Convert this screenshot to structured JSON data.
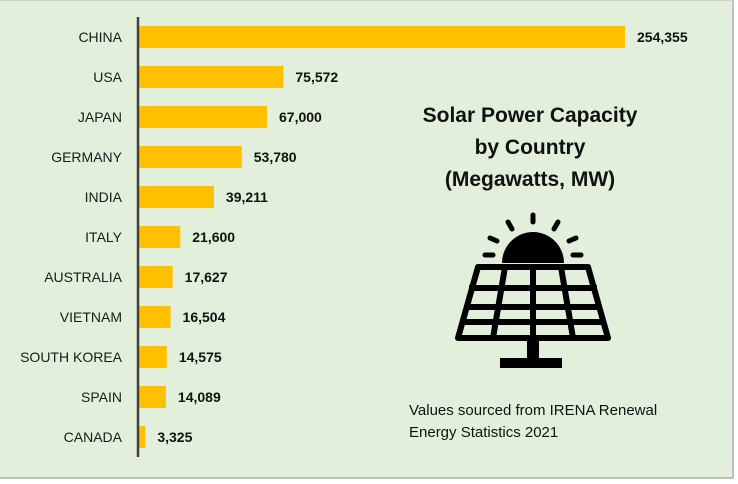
{
  "chart_data": {
    "type": "bar",
    "orientation": "horizontal",
    "title": [
      "Solar Power Capacity",
      "by Country",
      "(Megawatts, MW)"
    ],
    "xlabel": "",
    "ylabel": "",
    "categories": [
      "CHINA",
      "USA",
      "JAPAN",
      "GERMANY",
      "INDIA",
      "ITALY",
      "AUSTRALIA",
      "VIETNAM",
      "SOUTH KOREA",
      "SPAIN",
      "CANADA"
    ],
    "values": [
      254355,
      75572,
      67000,
      53780,
      39211,
      21600,
      17627,
      16504,
      14575,
      14089,
      3325
    ],
    "value_labels": [
      "254,355",
      "75,572",
      "67,000",
      "53,780",
      "39,211",
      "21,600",
      "17,627",
      "16,504",
      "14,575",
      "14,089",
      "3,325"
    ],
    "xlim": [
      0,
      254355
    ],
    "grid": false,
    "legend": "none",
    "bar_color": "#ffc000",
    "annotation": [
      "Values sourced from IRENA Renewal",
      "Energy Statistics 2021"
    ]
  },
  "colors": {
    "background": "#e2efda",
    "bar": "#ffc000",
    "axis": "#404040",
    "text": "#111111"
  },
  "icon": "solar-panel-with-sun-icon"
}
